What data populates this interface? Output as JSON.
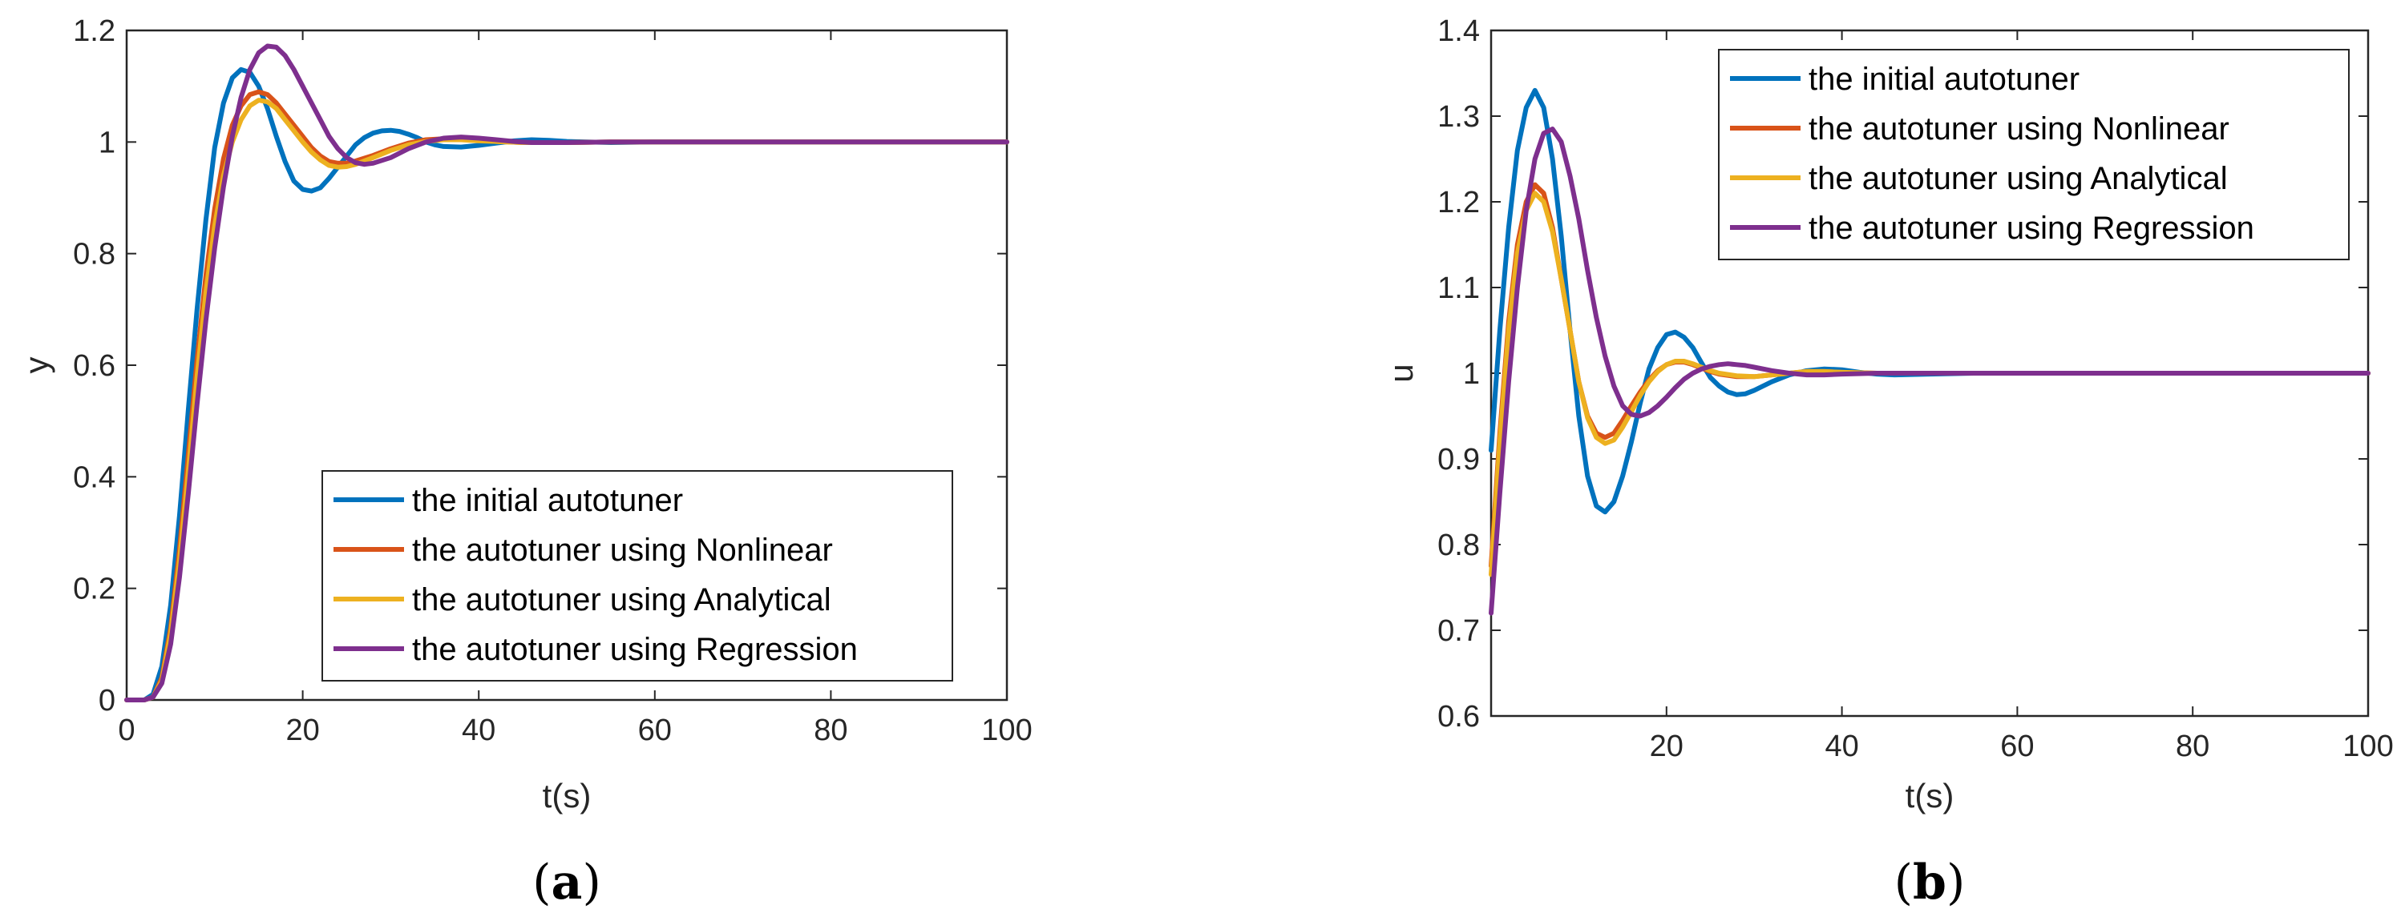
{
  "colors": {
    "initial": "#0072BD",
    "nonlinear": "#D95319",
    "analytical": "#EDB120",
    "regression": "#7E2F8E"
  },
  "chart_data": [
    {
      "type": "line",
      "panel_label": "a",
      "xlabel": "t(s)",
      "ylabel": "y",
      "xlim": [
        0,
        100
      ],
      "ylim": [
        0,
        1.2
      ],
      "xticks": [
        0,
        20,
        40,
        60,
        80,
        100
      ],
      "xtick_labels": [
        "0",
        "20",
        "40",
        "60",
        "80",
        "100"
      ],
      "yticks": [
        0,
        0.2,
        0.4,
        0.6,
        0.8,
        1,
        1.2
      ],
      "ytick_labels": [
        "0",
        "0.2",
        "0.4",
        "0.6",
        "0.8",
        "1",
        "1.2"
      ],
      "legend_position": "bottom-right",
      "grid": false,
      "series": [
        {
          "name": "the initial autotuner",
          "color_key": "initial",
          "x": [
            0,
            2,
            3,
            4,
            5,
            6,
            7,
            8,
            9,
            10,
            11,
            12,
            13,
            14,
            15,
            16,
            17,
            18,
            19,
            20,
            21,
            22,
            23,
            24,
            25,
            26,
            27,
            28,
            29,
            30,
            31,
            32,
            33,
            34,
            35,
            36,
            38,
            40,
            42,
            44,
            46,
            48,
            50,
            55,
            60,
            70,
            80,
            90,
            100
          ],
          "y": [
            0,
            0,
            0.01,
            0.06,
            0.17,
            0.33,
            0.52,
            0.7,
            0.86,
            0.99,
            1.07,
            1.115,
            1.13,
            1.125,
            1.1,
            1.06,
            1.01,
            0.965,
            0.93,
            0.915,
            0.912,
            0.918,
            0.935,
            0.955,
            0.975,
            0.995,
            1.008,
            1.016,
            1.02,
            1.021,
            1.019,
            1.014,
            1.008,
            1.0,
            0.995,
            0.992,
            0.991,
            0.994,
            0.998,
            1.002,
            1.004,
            1.003,
            1.001,
            0.999,
            1.0,
            1.0,
            1.0,
            1.0,
            1.0
          ]
        },
        {
          "name": "the autotuner using Nonlinear",
          "color_key": "nonlinear",
          "x": [
            0,
            2,
            3,
            4,
            5,
            6,
            7,
            8,
            9,
            10,
            11,
            12,
            13,
            14,
            15,
            16,
            17,
            18,
            19,
            20,
            21,
            22,
            23,
            24,
            25,
            26,
            28,
            30,
            32,
            34,
            36,
            38,
            40,
            42,
            45,
            50,
            55,
            60,
            70,
            80,
            90,
            100
          ],
          "y": [
            0,
            0,
            0.005,
            0.04,
            0.13,
            0.27,
            0.44,
            0.61,
            0.76,
            0.88,
            0.97,
            1.03,
            1.065,
            1.085,
            1.09,
            1.085,
            1.07,
            1.05,
            1.03,
            1.01,
            0.99,
            0.975,
            0.965,
            0.962,
            0.962,
            0.966,
            0.976,
            0.988,
            0.998,
            1.004,
            1.006,
            1.005,
            1.003,
            1.001,
            0.999,
            0.999,
            1.0,
            1.0,
            1.0,
            1.0,
            1.0,
            1.0
          ]
        },
        {
          "name": "the autotuner using Analytical",
          "color_key": "analytical",
          "x": [
            0,
            2,
            3,
            4,
            5,
            6,
            7,
            8,
            9,
            10,
            11,
            12,
            13,
            14,
            15,
            16,
            17,
            18,
            19,
            20,
            21,
            22,
            23,
            24,
            25,
            26,
            28,
            30,
            32,
            34,
            36,
            38,
            40,
            42,
            45,
            50,
            55,
            60,
            70,
            80,
            90,
            100
          ],
          "y": [
            0,
            0,
            0.005,
            0.035,
            0.12,
            0.25,
            0.41,
            0.58,
            0.73,
            0.85,
            0.94,
            1.0,
            1.04,
            1.065,
            1.075,
            1.072,
            1.06,
            1.04,
            1.02,
            1.0,
            0.982,
            0.968,
            0.958,
            0.955,
            0.956,
            0.96,
            0.972,
            0.985,
            0.995,
            1.001,
            1.004,
            1.004,
            1.002,
            1.001,
            0.999,
            0.999,
            1.0,
            1.0,
            1.0,
            1.0,
            1.0,
            1.0
          ]
        },
        {
          "name": "the autotuner using Regression",
          "color_key": "regression",
          "x": [
            0,
            2,
            3,
            4,
            5,
            6,
            7,
            8,
            9,
            10,
            11,
            12,
            13,
            14,
            15,
            16,
            17,
            18,
            19,
            20,
            21,
            22,
            23,
            24,
            25,
            26,
            27,
            28,
            30,
            32,
            34,
            36,
            38,
            40,
            42,
            44,
            46,
            50,
            55,
            60,
            70,
            80,
            90,
            100
          ],
          "y": [
            0,
            0,
            0.005,
            0.03,
            0.1,
            0.22,
            0.37,
            0.53,
            0.68,
            0.81,
            0.92,
            1.01,
            1.08,
            1.13,
            1.16,
            1.172,
            1.17,
            1.155,
            1.13,
            1.1,
            1.07,
            1.04,
            1.01,
            0.988,
            0.972,
            0.963,
            0.96,
            0.962,
            0.972,
            0.988,
            1.0,
            1.007,
            1.009,
            1.007,
            1.004,
            1.001,
            0.999,
            0.999,
            1.0,
            1.0,
            1.0,
            1.0,
            1.0,
            1.0
          ]
        }
      ]
    },
    {
      "type": "line",
      "panel_label": "b",
      "xlabel": "t(s)",
      "ylabel": "u",
      "xlim": [
        0,
        100
      ],
      "ylim": [
        0.6,
        1.4
      ],
      "xticks": [
        20,
        40,
        60,
        80,
        100
      ],
      "xtick_labels": [
        "20",
        "40",
        "60",
        "80",
        "100"
      ],
      "yticks": [
        0.6,
        0.7,
        0.8,
        0.9,
        1,
        1.1,
        1.2,
        1.3,
        1.4
      ],
      "ytick_labels": [
        "0.6",
        "0.7",
        "0.8",
        "0.9",
        "1",
        "1.1",
        "1.2",
        "1.3",
        "1.4"
      ],
      "legend_position": "top-right",
      "grid": false,
      "series": [
        {
          "name": "the initial autotuner",
          "color_key": "initial",
          "x": [
            0,
            1,
            2,
            3,
            4,
            5,
            6,
            7,
            8,
            9,
            10,
            11,
            12,
            13,
            14,
            15,
            16,
            17,
            18,
            19,
            20,
            21,
            22,
            23,
            24,
            25,
            26,
            27,
            28,
            29,
            30,
            32,
            34,
            36,
            38,
            40,
            42,
            44,
            46,
            50,
            55,
            60,
            70,
            80,
            90,
            100
          ],
          "y": [
            0.91,
            1.05,
            1.17,
            1.26,
            1.31,
            1.33,
            1.31,
            1.25,
            1.16,
            1.05,
            0.95,
            0.88,
            0.845,
            0.838,
            0.85,
            0.88,
            0.92,
            0.965,
            1.005,
            1.03,
            1.045,
            1.048,
            1.042,
            1.03,
            1.012,
            0.995,
            0.985,
            0.978,
            0.975,
            0.976,
            0.98,
            0.99,
            0.998,
            1.003,
            1.005,
            1.004,
            1.001,
            0.999,
            0.998,
            0.999,
            1.0,
            1.0,
            1.0,
            1.0,
            1.0,
            1.0
          ]
        },
        {
          "name": "the autotuner using Nonlinear",
          "color_key": "nonlinear",
          "x": [
            0,
            1,
            2,
            3,
            4,
            5,
            6,
            7,
            8,
            9,
            10,
            11,
            12,
            13,
            14,
            15,
            16,
            17,
            18,
            19,
            20,
            21,
            22,
            23,
            24,
            25,
            26,
            28,
            30,
            32,
            34,
            36,
            38,
            40,
            44,
            48,
            55,
            60,
            70,
            80,
            90,
            100
          ],
          "y": [
            0.775,
            0.93,
            1.06,
            1.15,
            1.2,
            1.22,
            1.21,
            1.17,
            1.11,
            1.05,
            0.99,
            0.95,
            0.93,
            0.925,
            0.93,
            0.945,
            0.962,
            0.978,
            0.992,
            1.003,
            1.01,
            1.013,
            1.013,
            1.01,
            1.006,
            1.002,
            0.999,
            0.996,
            0.996,
            0.998,
            1.0,
            1.002,
            1.002,
            1.001,
            1.0,
            1.0,
            1.0,
            1.0,
            1.0,
            1.0,
            1.0,
            1.0
          ]
        },
        {
          "name": "the autotuner using Analytical",
          "color_key": "analytical",
          "x": [
            0,
            1,
            2,
            3,
            4,
            5,
            6,
            7,
            8,
            9,
            10,
            11,
            12,
            13,
            14,
            15,
            16,
            17,
            18,
            19,
            20,
            21,
            22,
            23,
            24,
            25,
            26,
            28,
            30,
            32,
            34,
            36,
            38,
            40,
            44,
            48,
            55,
            60,
            70,
            80,
            90,
            100
          ],
          "y": [
            0.765,
            0.92,
            1.05,
            1.14,
            1.19,
            1.21,
            1.2,
            1.165,
            1.11,
            1.05,
            0.99,
            0.948,
            0.925,
            0.918,
            0.922,
            0.937,
            0.955,
            0.974,
            0.99,
            1.002,
            1.01,
            1.014,
            1.014,
            1.011,
            1.007,
            1.003,
            1.0,
            0.997,
            0.996,
            0.998,
            1.0,
            1.002,
            1.002,
            1.001,
            1.0,
            1.0,
            1.0,
            1.0,
            1.0,
            1.0,
            1.0,
            1.0
          ]
        },
        {
          "name": "the autotuner using Regression",
          "color_key": "regression",
          "x": [
            0,
            1,
            2,
            3,
            4,
            5,
            6,
            7,
            8,
            9,
            10,
            11,
            12,
            13,
            14,
            15,
            16,
            17,
            18,
            19,
            20,
            21,
            22,
            23,
            24,
            25,
            26,
            27,
            28,
            29,
            30,
            32,
            34,
            36,
            38,
            40,
            44,
            48,
            55,
            60,
            70,
            80,
            90,
            100
          ],
          "y": [
            0.72,
            0.86,
            0.99,
            1.1,
            1.19,
            1.25,
            1.28,
            1.285,
            1.27,
            1.23,
            1.18,
            1.12,
            1.065,
            1.02,
            0.985,
            0.962,
            0.952,
            0.95,
            0.954,
            0.962,
            0.972,
            0.983,
            0.993,
            1.0,
            1.005,
            1.008,
            1.01,
            1.011,
            1.01,
            1.009,
            1.007,
            1.003,
            1.0,
            0.998,
            0.998,
            0.999,
            1.0,
            1.0,
            1.0,
            1.0,
            1.0,
            1.0,
            1.0,
            1.0
          ]
        }
      ]
    }
  ]
}
